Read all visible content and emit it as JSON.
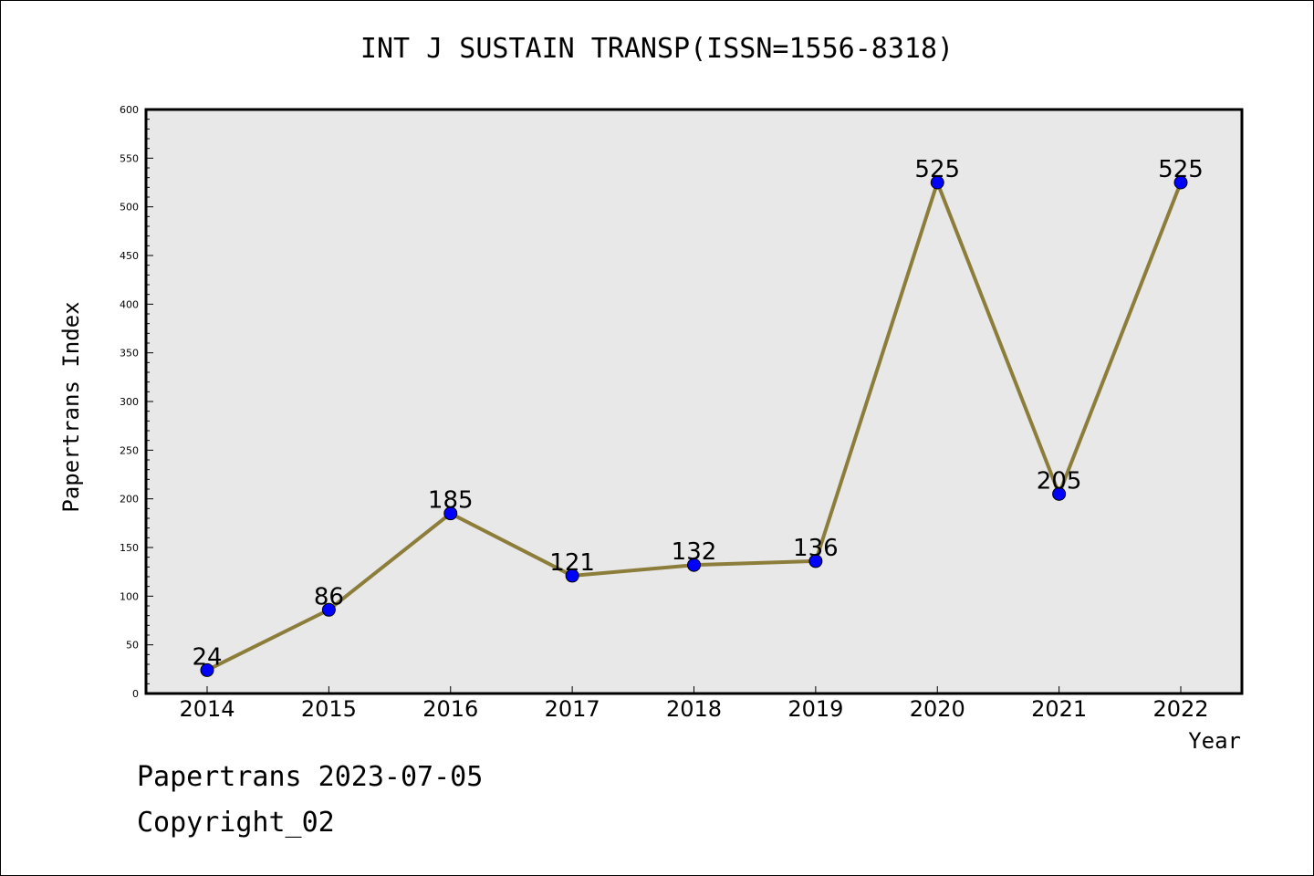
{
  "title": "INT J SUSTAIN TRANSP(ISSN=1556-8318)",
  "footer": {
    "date_line": "Papertrans 2023-07-05",
    "copyright": "Copyright_02"
  },
  "colors": {
    "plot_background": "#e8e8e8",
    "line": "#8c7d3a",
    "marker": "#0000ff"
  },
  "chart_data": {
    "type": "line",
    "title": "INT J SUSTAIN TRANSP(ISSN=1556-8318)",
    "xlabel": "Year",
    "ylabel": "Papertrans Index",
    "categories": [
      "2014",
      "2015",
      "2016",
      "2017",
      "2018",
      "2019",
      "2020",
      "2021",
      "2022"
    ],
    "values": [
      24,
      86,
      185,
      121,
      132,
      136,
      525,
      205,
      525
    ],
    "data_labels": [
      "24",
      "86",
      "185",
      "121",
      "132",
      "136",
      "525",
      "205",
      "525"
    ],
    "ylim": [
      0,
      600
    ],
    "yticks": [
      0,
      50,
      100,
      150,
      200,
      250,
      300,
      350,
      400,
      450,
      500,
      550,
      600
    ],
    "ytick_labels": [
      "0",
      "50",
      "100",
      "150",
      "200",
      "250",
      "300",
      "350",
      "400",
      "450",
      "500",
      "550",
      "600"
    ],
    "grid": false,
    "legend": "none"
  }
}
